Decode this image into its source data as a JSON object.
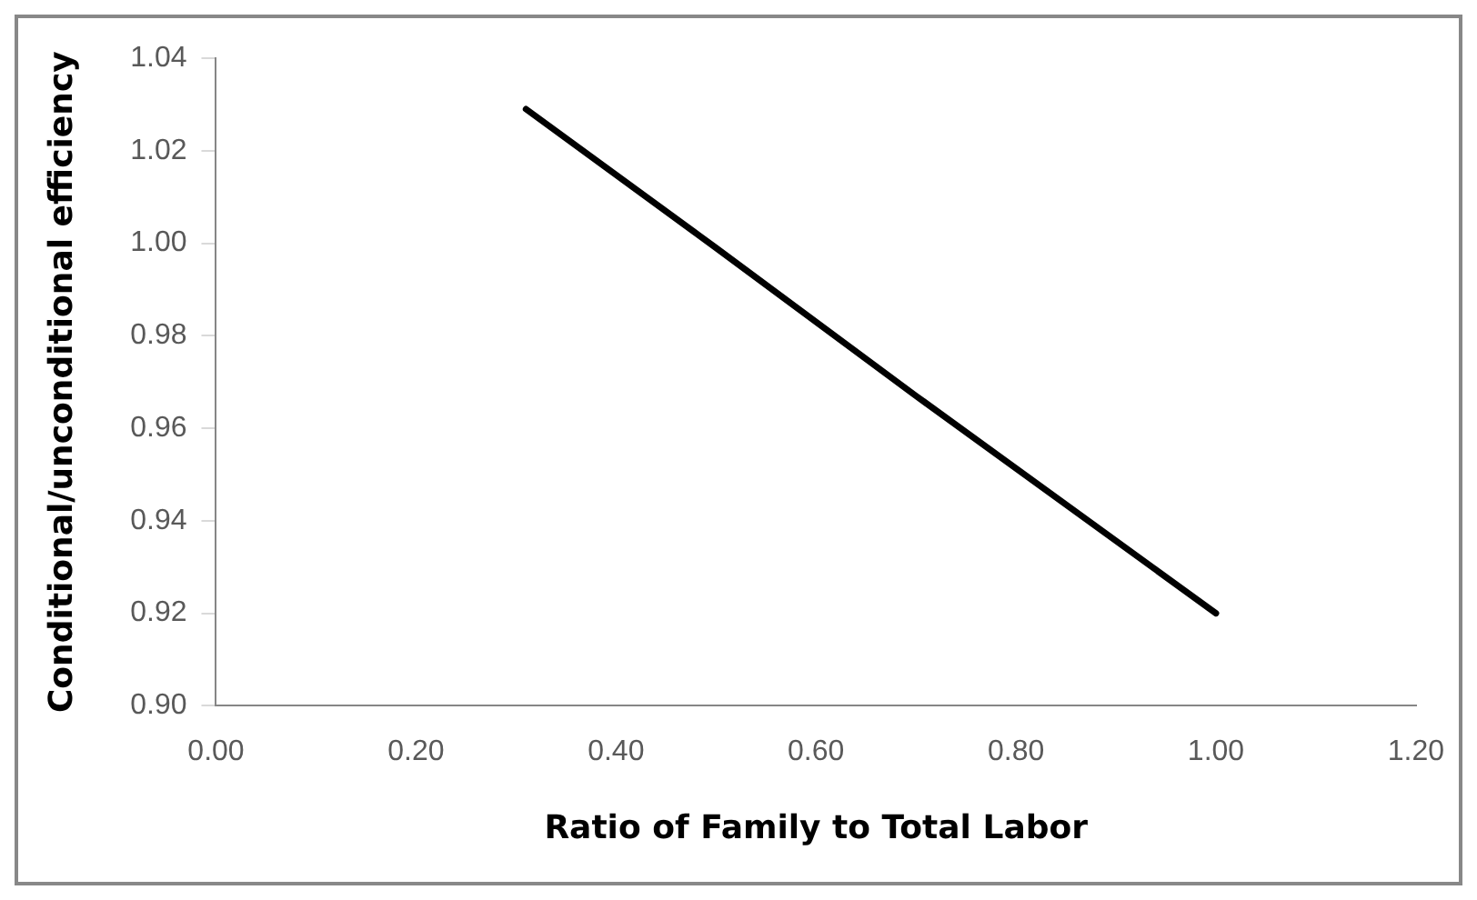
{
  "chart_data": {
    "type": "line",
    "xlabel": "Ratio of Family to Total Labor",
    "ylabel": "Conditional/unconditional efficiency",
    "x": [
      0.31,
      0.5,
      0.7,
      1.0
    ],
    "series": [
      {
        "color": "#000000",
        "values": [
          1.029,
          0.999,
          0.967,
          0.92
        ]
      }
    ],
    "xlim": [
      0,
      1.2
    ],
    "xticks": [
      {
        "value": 0,
        "label": "0.00"
      },
      {
        "value": 0.2,
        "label": "0.20"
      },
      {
        "value": 0.4,
        "label": "0.40"
      },
      {
        "value": 0.6,
        "label": "0.60"
      },
      {
        "value": 0.8,
        "label": "0.80"
      },
      {
        "value": 1,
        "label": "1.00"
      },
      {
        "value": 1.2,
        "label": "1.20"
      }
    ],
    "ylim": [
      0.9,
      1.04
    ],
    "yticks": [
      {
        "value": 0.9,
        "label": "0.90"
      },
      {
        "value": 0.92,
        "label": "0.92"
      },
      {
        "value": 0.94,
        "label": "0.94"
      },
      {
        "value": 0.96,
        "label": "0.96"
      },
      {
        "value": 0.98,
        "label": "0.98"
      },
      {
        "value": 1,
        "label": "1.00"
      },
      {
        "value": 1.02,
        "label": "1.02"
      },
      {
        "value": 1.04,
        "label": "1.04"
      }
    ],
    "grid": false,
    "legend": false,
    "marker": "none",
    "line_style": "solid"
  }
}
